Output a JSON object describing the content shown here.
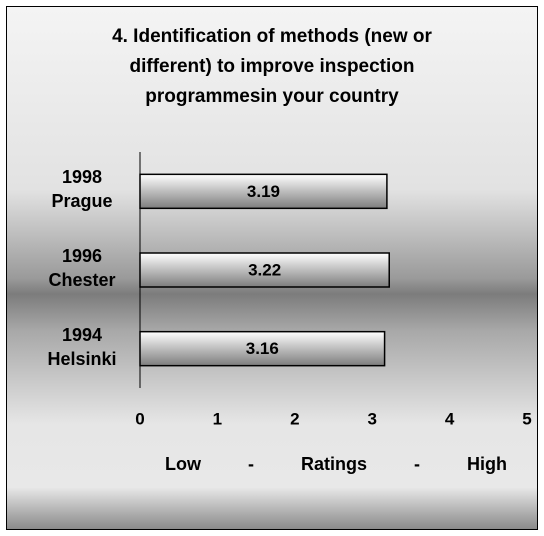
{
  "chart_data": {
    "type": "bar",
    "orientation": "horizontal",
    "title": "4. Identification of methods (new or different) to improve inspection programmesin your country",
    "categories": [
      "1998\nPrague",
      "1996\nChester",
      "1994\nHelsinki"
    ],
    "values": [
      3.19,
      3.22,
      3.16
    ],
    "color": "#b0b0b0",
    "xlim": [
      0,
      5
    ],
    "xticks": [
      0,
      1,
      2,
      3,
      4,
      5
    ],
    "xlabel": "Low - Ratings - High",
    "grid": false
  }
}
